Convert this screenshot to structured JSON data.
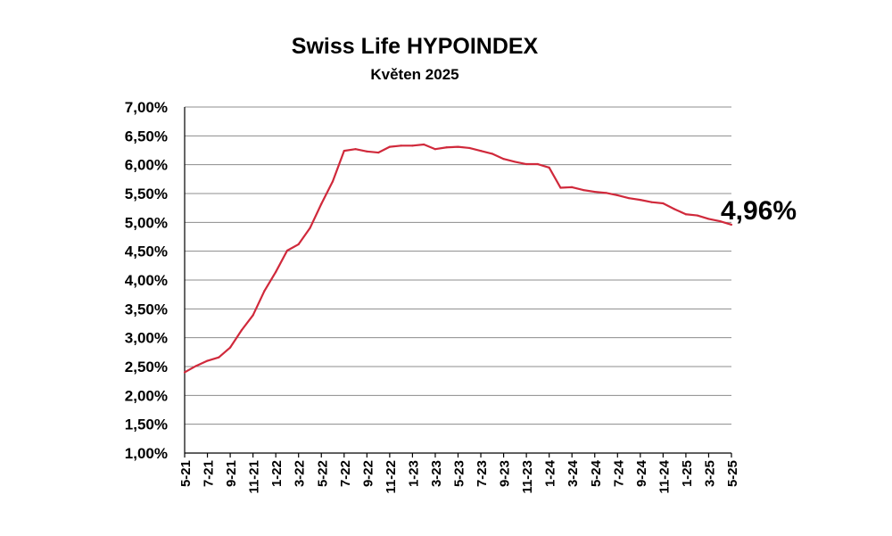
{
  "chart_data": {
    "type": "line",
    "title": "Swiss Life HYPOINDEX",
    "subtitle": "Květen 2025",
    "xlabel": "",
    "ylabel": "",
    "ylim": [
      1.0,
      7.0
    ],
    "y_ticks": [
      "1,00%",
      "1,50%",
      "2,00%",
      "2,50%",
      "3,00%",
      "3,50%",
      "4,00%",
      "4,50%",
      "5,00%",
      "5,50%",
      "6,00%",
      "6,50%",
      "7,00%"
    ],
    "x_tick_labels": [
      "5-21",
      "7-21",
      "9-21",
      "11-21",
      "1-22",
      "3-22",
      "5-22",
      "7-22",
      "9-22",
      "11-22",
      "1-23",
      "3-23",
      "5-23",
      "7-23",
      "9-23",
      "11-23",
      "1-24",
      "3-24",
      "5-24",
      "7-24",
      "9-24",
      "11-24",
      "1-25",
      "3-25",
      "5-25"
    ],
    "grid": true,
    "line_color": "#d0293b",
    "series": [
      {
        "x": [
          "5-21",
          "6-21",
          "7-21",
          "8-21",
          "9-21",
          "10-21",
          "11-21",
          "12-21",
          "1-22",
          "2-22",
          "3-22",
          "4-22",
          "5-22",
          "6-22",
          "7-22",
          "8-22",
          "9-22",
          "10-22",
          "11-22",
          "12-22",
          "1-23",
          "2-23",
          "3-23",
          "4-23",
          "5-23",
          "6-23",
          "7-23",
          "8-23",
          "9-23",
          "10-23",
          "11-23",
          "12-23",
          "1-24",
          "2-24",
          "3-24",
          "4-24",
          "5-24",
          "6-24",
          "7-24",
          "8-24",
          "9-24",
          "10-24",
          "11-24",
          "12-24",
          "1-25",
          "2-25",
          "3-25",
          "4-25",
          "5-25"
        ],
        "values": [
          2.4,
          2.51,
          2.6,
          2.66,
          2.83,
          3.13,
          3.39,
          3.81,
          4.14,
          4.51,
          4.62,
          4.9,
          5.32,
          5.71,
          6.24,
          6.27,
          6.23,
          6.21,
          6.31,
          6.33,
          6.33,
          6.35,
          6.27,
          6.3,
          6.31,
          6.29,
          6.24,
          6.19,
          6.1,
          6.05,
          6.01,
          6.01,
          5.95,
          5.6,
          5.61,
          5.56,
          5.53,
          5.51,
          5.47,
          5.42,
          5.39,
          5.35,
          5.33,
          5.23,
          5.14,
          5.12,
          5.06,
          5.02,
          4.96
        ]
      }
    ],
    "annotations": [
      {
        "text": "4,96%",
        "x": "5-25",
        "y": 4.96
      }
    ]
  }
}
